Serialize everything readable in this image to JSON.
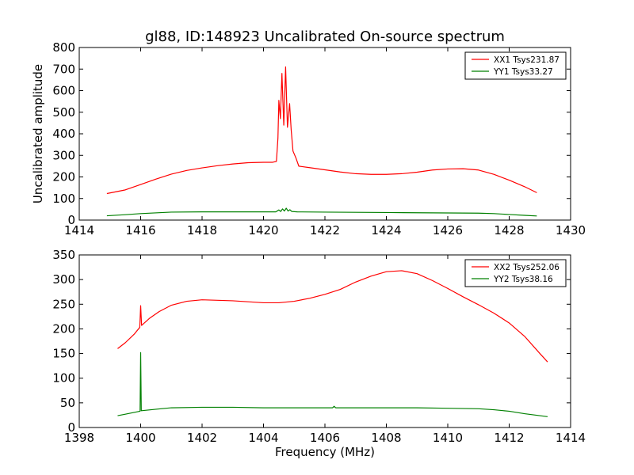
{
  "chart_data": [
    {
      "type": "line",
      "title": "gl88, ID:148923 Uncalibrated On-source spectrum",
      "xlabel": "",
      "ylabel": "Uncalibrated amplitude",
      "xlim": [
        1414,
        1430
      ],
      "ylim": [
        0,
        800
      ],
      "xticks": [
        1414,
        1416,
        1418,
        1420,
        1422,
        1424,
        1426,
        1428,
        1430
      ],
      "yticks": [
        0,
        100,
        200,
        300,
        400,
        500,
        600,
        700,
        800
      ],
      "legend_position": "top-right",
      "series": [
        {
          "name": "XX1 Tsys231.87",
          "color": "#ff0000",
          "points": [
            [
              1414.9,
              123
            ],
            [
              1415.5,
              140
            ],
            [
              1416,
              165
            ],
            [
              1416.5,
              190
            ],
            [
              1417,
              213
            ],
            [
              1417.5,
              230
            ],
            [
              1418,
              242
            ],
            [
              1418.5,
              252
            ],
            [
              1419,
              260
            ],
            [
              1419.5,
              266
            ],
            [
              1420,
              268
            ],
            [
              1420.3,
              268
            ],
            [
              1420.42,
              272
            ],
            [
              1420.47,
              380
            ],
            [
              1420.5,
              555
            ],
            [
              1420.55,
              470
            ],
            [
              1420.6,
              680
            ],
            [
              1420.66,
              440
            ],
            [
              1420.72,
              710
            ],
            [
              1420.78,
              430
            ],
            [
              1420.85,
              540
            ],
            [
              1420.9,
              420
            ],
            [
              1420.96,
              320
            ],
            [
              1421.05,
              290
            ],
            [
              1421.15,
              250
            ],
            [
              1421.5,
              243
            ],
            [
              1422,
              233
            ],
            [
              1422.5,
              223
            ],
            [
              1423,
              215
            ],
            [
              1423.5,
              212
            ],
            [
              1424,
              212
            ],
            [
              1424.5,
              215
            ],
            [
              1425,
              222
            ],
            [
              1425.5,
              232
            ],
            [
              1426,
              237
            ],
            [
              1426.5,
              238
            ],
            [
              1427,
              232
            ],
            [
              1427.5,
              212
            ],
            [
              1428,
              185
            ],
            [
              1428.5,
              155
            ],
            [
              1428.9,
              127
            ]
          ]
        },
        {
          "name": "YY1 Tsys33.27",
          "color": "#008000",
          "points": [
            [
              1414.9,
              20
            ],
            [
              1415.5,
              25
            ],
            [
              1416,
              30
            ],
            [
              1417,
              37
            ],
            [
              1418,
              38
            ],
            [
              1419,
              38
            ],
            [
              1420,
              38
            ],
            [
              1420.4,
              38
            ],
            [
              1420.5,
              47
            ],
            [
              1420.56,
              40
            ],
            [
              1420.62,
              52
            ],
            [
              1420.68,
              42
            ],
            [
              1420.74,
              55
            ],
            [
              1420.8,
              42
            ],
            [
              1420.86,
              48
            ],
            [
              1420.92,
              40
            ],
            [
              1421.1,
              38
            ],
            [
              1422,
              37
            ],
            [
              1423,
              36
            ],
            [
              1424,
              35
            ],
            [
              1425,
              34
            ],
            [
              1426,
              33
            ],
            [
              1427,
              32
            ],
            [
              1427.5,
              30
            ],
            [
              1428,
              26
            ],
            [
              1428.5,
              22
            ],
            [
              1428.9,
              19
            ]
          ]
        }
      ]
    },
    {
      "type": "line",
      "title": "",
      "xlabel": "Frequency (MHz)",
      "ylabel": "",
      "xlim": [
        1398,
        1414
      ],
      "ylim": [
        0,
        350
      ],
      "xticks": [
        1398,
        1400,
        1402,
        1404,
        1406,
        1408,
        1410,
        1412,
        1414
      ],
      "yticks": [
        0,
        50,
        100,
        150,
        200,
        250,
        300,
        350
      ],
      "legend_position": "top-right",
      "series": [
        {
          "name": "XX2 Tsys252.06",
          "color": "#ff0000",
          "points": [
            [
              1399.25,
              160
            ],
            [
              1399.5,
              172
            ],
            [
              1399.8,
              190
            ],
            [
              1399.97,
              203
            ],
            [
              1400,
              247
            ],
            [
              1400.03,
              207
            ],
            [
              1400.3,
              222
            ],
            [
              1400.6,
              235
            ],
            [
              1401,
              248
            ],
            [
              1401.5,
              256
            ],
            [
              1402,
              259
            ],
            [
              1402.5,
              258
            ],
            [
              1403,
              257
            ],
            [
              1403.5,
              255
            ],
            [
              1404,
              253
            ],
            [
              1404.5,
              253
            ],
            [
              1405,
              256
            ],
            [
              1405.5,
              262
            ],
            [
              1406,
              270
            ],
            [
              1406.5,
              280
            ],
            [
              1407,
              295
            ],
            [
              1407.5,
              307
            ],
            [
              1408,
              316
            ],
            [
              1408.5,
              318
            ],
            [
              1409,
              312
            ],
            [
              1409.5,
              298
            ],
            [
              1410,
              282
            ],
            [
              1410.5,
              265
            ],
            [
              1411,
              249
            ],
            [
              1411.5,
              232
            ],
            [
              1412,
              212
            ],
            [
              1412.5,
              185
            ],
            [
              1413,
              150
            ],
            [
              1413.25,
              133
            ]
          ]
        },
        {
          "name": "YY2 Tsys38.16",
          "color": "#008000",
          "points": [
            [
              1399.25,
              24
            ],
            [
              1399.5,
              27
            ],
            [
              1399.98,
              33
            ],
            [
              1400,
              152
            ],
            [
              1400.02,
              34
            ],
            [
              1400.5,
              37
            ],
            [
              1401,
              40
            ],
            [
              1402,
              41
            ],
            [
              1403,
              41
            ],
            [
              1404,
              40
            ],
            [
              1405,
              40
            ],
            [
              1406,
              40
            ],
            [
              1406.25,
              40
            ],
            [
              1406.3,
              43
            ],
            [
              1406.35,
              40
            ],
            [
              1407,
              40
            ],
            [
              1408,
              40
            ],
            [
              1409,
              40
            ],
            [
              1410,
              39
            ],
            [
              1411,
              38
            ],
            [
              1411.5,
              36
            ],
            [
              1412,
              33
            ],
            [
              1412.5,
              28
            ],
            [
              1413,
              24
            ],
            [
              1413.25,
              22
            ]
          ]
        }
      ]
    }
  ]
}
